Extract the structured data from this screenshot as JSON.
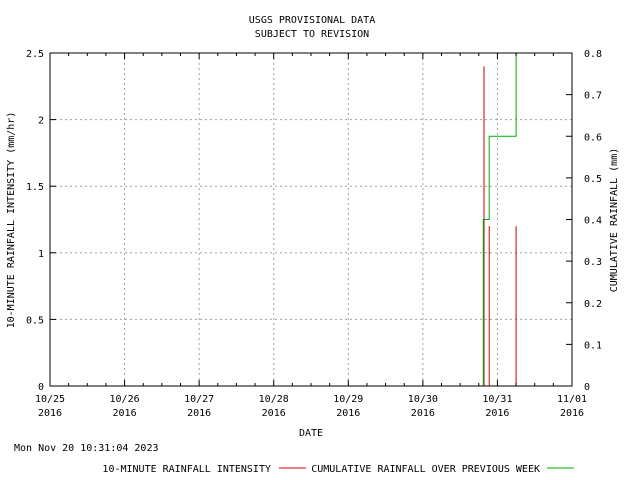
{
  "chart_data": {
    "type": "line",
    "title_lines": [
      "USGS PROVISIONAL DATA",
      "SUBJECT TO REVISION"
    ],
    "xlabel": "DATE",
    "ylabel_left": "10-MINUTE RAINFALL INTENSITY (mm/hr)",
    "ylabel_right": "CUMULATIVE RAINFALL (mm)",
    "x_ticks": [
      {
        "day": 0,
        "label_line1": "10/25",
        "label_line2": "2016"
      },
      {
        "day": 1,
        "label_line1": "10/26",
        "label_line2": "2016"
      },
      {
        "day": 2,
        "label_line1": "10/27",
        "label_line2": "2016"
      },
      {
        "day": 3,
        "label_line1": "10/28",
        "label_line2": "2016"
      },
      {
        "day": 4,
        "label_line1": "10/29",
        "label_line2": "2016"
      },
      {
        "day": 5,
        "label_line1": "10/30",
        "label_line2": "2016"
      },
      {
        "day": 6,
        "label_line1": "10/31",
        "label_line2": "2016"
      },
      {
        "day": 7,
        "label_line1": "11/01",
        "label_line2": "2016"
      }
    ],
    "xlim_days": [
      0,
      7
    ],
    "y_left_ticks": [
      "0",
      "0.5",
      "1",
      "1.5",
      "2",
      "2.5"
    ],
    "y_left_values": [
      0,
      0.5,
      1,
      1.5,
      2,
      2.5
    ],
    "ylim_left": [
      0,
      2.5
    ],
    "y_right_ticks": [
      "0",
      "0.1",
      "0.2",
      "0.3",
      "0.4",
      "0.5",
      "0.6",
      "0.7",
      "0.8"
    ],
    "y_right_values": [
      0,
      0.1,
      0.2,
      0.3,
      0.4,
      0.5,
      0.6,
      0.7,
      0.8
    ],
    "ylim_right": [
      0,
      0.8
    ],
    "grid": true,
    "series": [
      {
        "name": "10-MINUTE RAINFALL INTENSITY",
        "color": "#cc0000",
        "axis": "left",
        "kind": "impulse",
        "points": [
          {
            "day": 5.82,
            "value": 2.4
          },
          {
            "day": 5.89,
            "value": 1.2
          },
          {
            "day": 6.25,
            "value": 1.2
          }
        ]
      },
      {
        "name": "CUMULATIVE RAINFALL OVER PREVIOUS WEEK",
        "color": "#00aa00",
        "axis": "right",
        "kind": "step",
        "points": [
          {
            "day": 5.81,
            "value": 0.0
          },
          {
            "day": 5.81,
            "value": 0.4
          },
          {
            "day": 5.89,
            "value": 0.4
          },
          {
            "day": 5.89,
            "value": 0.6
          },
          {
            "day": 6.25,
            "value": 0.6
          },
          {
            "day": 6.25,
            "value": 0.8
          }
        ]
      }
    ],
    "timestamp": "Mon Nov 20 10:31:04 2023"
  }
}
